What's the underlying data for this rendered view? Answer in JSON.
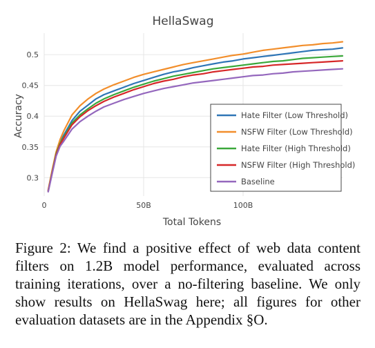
{
  "chart_data": {
    "type": "line",
    "title": "HellaSwag",
    "xlabel": "Total Tokens",
    "ylabel": "Accuracy",
    "xlim": [
      0,
      150
    ],
    "ylim": [
      0.27,
      0.535
    ],
    "x_unit": "billion tokens",
    "xticks": [
      {
        "value": 0,
        "label": "0"
      },
      {
        "value": 50,
        "label": "50B"
      },
      {
        "value": 100,
        "label": "100B"
      }
    ],
    "yticks": [
      {
        "value": 0.3,
        "label": "0.3"
      },
      {
        "value": 0.35,
        "label": "0.35"
      },
      {
        "value": 0.4,
        "label": "0.4"
      },
      {
        "value": 0.45,
        "label": "0.45"
      },
      {
        "value": 0.5,
        "label": "0.5"
      }
    ],
    "grid": true,
    "legend_position": "inside-right",
    "x": [
      2,
      4,
      6,
      8,
      10,
      14,
      18,
      22,
      26,
      30,
      35,
      40,
      45,
      50,
      55,
      60,
      65,
      70,
      75,
      80,
      85,
      90,
      95,
      100,
      105,
      110,
      115,
      120,
      125,
      130,
      135,
      140,
      145,
      150
    ],
    "series": [
      {
        "name": "Hate Filter (Low Threshold)",
        "color": "#2e75b6",
        "values": [
          0.279,
          0.31,
          0.34,
          0.358,
          0.37,
          0.393,
          0.408,
          0.418,
          0.428,
          0.435,
          0.441,
          0.447,
          0.453,
          0.458,
          0.463,
          0.468,
          0.472,
          0.475,
          0.479,
          0.482,
          0.485,
          0.488,
          0.49,
          0.493,
          0.495,
          0.497,
          0.499,
          0.501,
          0.503,
          0.505,
          0.507,
          0.508,
          0.509,
          0.511
        ]
      },
      {
        "name": "NSFW Filter (Low Threshold)",
        "color": "#f28e2b",
        "values": [
          0.28,
          0.312,
          0.342,
          0.362,
          0.377,
          0.402,
          0.417,
          0.428,
          0.437,
          0.444,
          0.451,
          0.457,
          0.463,
          0.468,
          0.472,
          0.476,
          0.48,
          0.484,
          0.487,
          0.49,
          0.493,
          0.496,
          0.499,
          0.501,
          0.504,
          0.507,
          0.509,
          0.511,
          0.513,
          0.515,
          0.516,
          0.518,
          0.519,
          0.521
        ]
      },
      {
        "name": "Hate Filter (High Threshold)",
        "color": "#3aa83a",
        "values": [
          0.278,
          0.309,
          0.339,
          0.356,
          0.367,
          0.389,
          0.402,
          0.412,
          0.421,
          0.428,
          0.435,
          0.441,
          0.447,
          0.452,
          0.457,
          0.461,
          0.465,
          0.468,
          0.471,
          0.474,
          0.477,
          0.479,
          0.481,
          0.483,
          0.485,
          0.487,
          0.489,
          0.49,
          0.492,
          0.494,
          0.495,
          0.496,
          0.497,
          0.498
        ]
      },
      {
        "name": "NSFW Filter (High Threshold)",
        "color": "#d62728",
        "values": [
          0.278,
          0.308,
          0.337,
          0.354,
          0.365,
          0.386,
          0.399,
          0.409,
          0.417,
          0.424,
          0.431,
          0.437,
          0.443,
          0.448,
          0.453,
          0.457,
          0.46,
          0.464,
          0.467,
          0.469,
          0.472,
          0.474,
          0.476,
          0.478,
          0.48,
          0.481,
          0.483,
          0.484,
          0.485,
          0.486,
          0.487,
          0.488,
          0.489,
          0.49
        ]
      },
      {
        "name": "Baseline",
        "color": "#9467bd",
        "values": [
          0.277,
          0.306,
          0.335,
          0.351,
          0.36,
          0.379,
          0.391,
          0.4,
          0.408,
          0.415,
          0.421,
          0.427,
          0.432,
          0.437,
          0.441,
          0.445,
          0.448,
          0.451,
          0.454,
          0.456,
          0.458,
          0.46,
          0.462,
          0.464,
          0.466,
          0.467,
          0.469,
          0.47,
          0.472,
          0.473,
          0.474,
          0.475,
          0.476,
          0.477
        ]
      }
    ]
  },
  "caption": "Figure 2: We find a positive effect of web data content filters on 1.2B model performance, evaluated across training iterations, over a no-filtering baseline. We only show results on HellaSwag here; all figures for other evaluation datasets are in the Appendix §O."
}
